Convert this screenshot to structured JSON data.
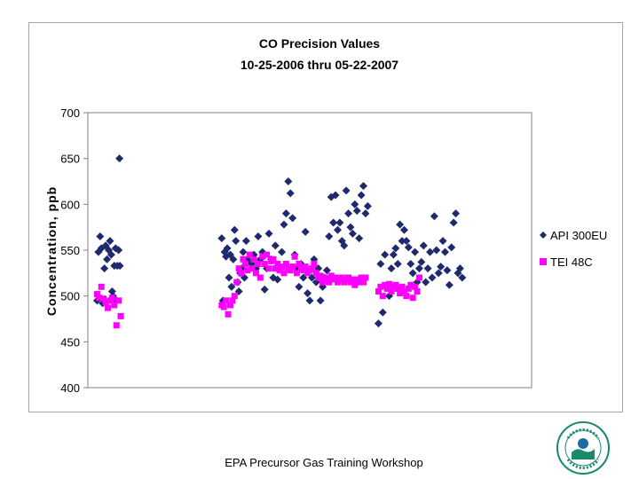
{
  "footer": {
    "text": "EPA Precursor Gas Training Workshop"
  },
  "logo": {
    "icon": "epa-seal-icon",
    "ring_text": "UNITED STATES · ENVIRONMENTAL PROTECTION AGENCY"
  },
  "colors": {
    "api": "#1f2a6e",
    "tei": "#ff00ff",
    "plot_border": "#808080",
    "frame_border": "#a6a6a6"
  },
  "chart_data": {
    "type": "scatter",
    "title": "CO Precision Values",
    "subtitle": "10-25-2006 thru 05-22-2007",
    "xlabel": "",
    "ylabel": "Concentration, ppb",
    "ylim": [
      400,
      700
    ],
    "yticks": [
      "700",
      "650",
      "600",
      "550",
      "500",
      "450",
      "400"
    ],
    "grid": false,
    "legend_position": "right",
    "x_axis_note": "sequential measurement index (no x tick labels shown)",
    "xlim": [
      0,
      100
    ],
    "series": [
      {
        "name": "API 300EU",
        "marker": "diamond",
        "color": "#1f2a6e",
        "points": [
          [
            0.5,
            495
          ],
          [
            0.8,
            548
          ],
          [
            1.2,
            565
          ],
          [
            1.5,
            552
          ],
          [
            1.8,
            492
          ],
          [
            2.2,
            530
          ],
          [
            2.5,
            555
          ],
          [
            2.8,
            540
          ],
          [
            3.2,
            550
          ],
          [
            3.5,
            560
          ],
          [
            3.8,
            545
          ],
          [
            4.0,
            505
          ],
          [
            4.2,
            500
          ],
          [
            4.5,
            533
          ],
          [
            4.8,
            552
          ],
          [
            5.0,
            495
          ],
          [
            5.2,
            533
          ],
          [
            5.5,
            550
          ],
          [
            5.7,
            650
          ],
          [
            5.8,
            533
          ],
          [
            29.5,
            563
          ],
          [
            29.8,
            495
          ],
          [
            30.2,
            548
          ],
          [
            30.5,
            543
          ],
          [
            30.8,
            552
          ],
          [
            31.2,
            520
          ],
          [
            31.5,
            545
          ],
          [
            31.8,
            510
          ],
          [
            32.2,
            540
          ],
          [
            32.5,
            572
          ],
          [
            32.8,
            560
          ],
          [
            33.2,
            515
          ],
          [
            33.5,
            505
          ],
          [
            33.8,
            525
          ],
          [
            34.2,
            530
          ],
          [
            34.5,
            548
          ],
          [
            34.8,
            520
          ],
          [
            35.2,
            560
          ],
          [
            35.5,
            540
          ],
          [
            35.8,
            538
          ],
          [
            36.5,
            535
          ],
          [
            37.0,
            545
          ],
          [
            37.5,
            530
          ],
          [
            38.0,
            565
          ],
          [
            38.5,
            540
          ],
          [
            39.0,
            548
          ],
          [
            39.5,
            507
          ],
          [
            40.0,
            530
          ],
          [
            40.5,
            568
          ],
          [
            41.0,
            540
          ],
          [
            41.5,
            520
          ],
          [
            42.0,
            555
          ],
          [
            42.5,
            518
          ],
          [
            43.0,
            530
          ],
          [
            43.5,
            548
          ],
          [
            44.0,
            578
          ],
          [
            44.5,
            590
          ],
          [
            45.0,
            625
          ],
          [
            45.5,
            612
          ],
          [
            46.0,
            585
          ],
          [
            46.5,
            545
          ],
          [
            47.0,
            530
          ],
          [
            47.5,
            510
          ],
          [
            48.0,
            535
          ],
          [
            48.5,
            520
          ],
          [
            49.0,
            570
          ],
          [
            49.5,
            503
          ],
          [
            50.0,
            495
          ],
          [
            50.5,
            520
          ],
          [
            51.0,
            540
          ],
          [
            51.5,
            515
          ],
          [
            52.0,
            530
          ],
          [
            52.5,
            495
          ],
          [
            53.0,
            510
          ],
          [
            53.5,
            520
          ],
          [
            54.0,
            528
          ],
          [
            54.5,
            565
          ],
          [
            55.0,
            608
          ],
          [
            55.5,
            580
          ],
          [
            56.0,
            610
          ],
          [
            56.5,
            572
          ],
          [
            57.0,
            580
          ],
          [
            57.5,
            560
          ],
          [
            58.0,
            555
          ],
          [
            58.5,
            615
          ],
          [
            59.0,
            590
          ],
          [
            59.5,
            575
          ],
          [
            60.0,
            568
          ],
          [
            60.5,
            600
          ],
          [
            61.0,
            593
          ],
          [
            61.5,
            563
          ],
          [
            62.0,
            610
          ],
          [
            62.5,
            620
          ],
          [
            63.0,
            590
          ],
          [
            63.5,
            598
          ],
          [
            66.0,
            470
          ],
          [
            66.5,
            535
          ],
          [
            67.0,
            482
          ],
          [
            67.5,
            545
          ],
          [
            68.0,
            510
          ],
          [
            68.5,
            500
          ],
          [
            69.0,
            530
          ],
          [
            69.5,
            545
          ],
          [
            70.0,
            552
          ],
          [
            70.5,
            535
          ],
          [
            71.0,
            578
          ],
          [
            71.5,
            560
          ],
          [
            72.0,
            572
          ],
          [
            72.5,
            560
          ],
          [
            73.0,
            553
          ],
          [
            73.5,
            535
          ],
          [
            74.0,
            525
          ],
          [
            74.5,
            548
          ],
          [
            75.0,
            515
          ],
          [
            75.5,
            530
          ],
          [
            76.0,
            537
          ],
          [
            76.5,
            555
          ],
          [
            77.0,
            515
          ],
          [
            77.5,
            530
          ],
          [
            78.0,
            548
          ],
          [
            78.5,
            520
          ],
          [
            79.0,
            587
          ],
          [
            79.5,
            550
          ],
          [
            80.0,
            525
          ],
          [
            80.5,
            532
          ],
          [
            81.0,
            560
          ],
          [
            81.5,
            548
          ],
          [
            82.0,
            528
          ],
          [
            82.5,
            512
          ],
          [
            83.0,
            553
          ],
          [
            83.5,
            580
          ],
          [
            84.0,
            590
          ],
          [
            84.5,
            525
          ],
          [
            85.0,
            530
          ],
          [
            85.5,
            520
          ]
        ]
      },
      {
        "name": "TEI 48C",
        "marker": "square",
        "color": "#ff00ff",
        "points": [
          [
            0.5,
            502
          ],
          [
            1.0,
            498
          ],
          [
            1.5,
            510
          ],
          [
            2.0,
            497
          ],
          [
            2.5,
            493
          ],
          [
            3.0,
            487
          ],
          [
            3.5,
            495
          ],
          [
            4.0,
            498
          ],
          [
            4.5,
            490
          ],
          [
            5.0,
            468
          ],
          [
            5.5,
            495
          ],
          [
            6.0,
            478
          ],
          [
            29.5,
            490
          ],
          [
            30.0,
            488
          ],
          [
            30.5,
            495
          ],
          [
            31.0,
            480
          ],
          [
            31.5,
            490
          ],
          [
            32.0,
            495
          ],
          [
            32.5,
            500
          ],
          [
            33.0,
            515
          ],
          [
            33.5,
            530
          ],
          [
            34.0,
            525
          ],
          [
            34.5,
            540
          ],
          [
            35.0,
            535
          ],
          [
            35.5,
            528
          ],
          [
            36.0,
            545
          ],
          [
            36.5,
            530
          ],
          [
            37.0,
            540
          ],
          [
            37.5,
            525
          ],
          [
            38.0,
            535
          ],
          [
            38.5,
            520
          ],
          [
            39.0,
            543
          ],
          [
            39.5,
            535
          ],
          [
            40.0,
            545
          ],
          [
            40.5,
            530
          ],
          [
            41.0,
            538
          ],
          [
            41.5,
            540
          ],
          [
            42.0,
            530
          ],
          [
            42.5,
            535
          ],
          [
            43.0,
            528
          ],
          [
            43.5,
            532
          ],
          [
            44.0,
            525
          ],
          [
            44.5,
            535
          ],
          [
            45.0,
            530
          ],
          [
            45.5,
            528
          ],
          [
            46.0,
            532
          ],
          [
            46.5,
            543
          ],
          [
            47.0,
            525
          ],
          [
            47.5,
            535
          ],
          [
            48.0,
            530
          ],
          [
            48.5,
            528
          ],
          [
            49.0,
            532
          ],
          [
            49.5,
            525
          ],
          [
            50.0,
            528
          ],
          [
            50.5,
            530
          ],
          [
            51.0,
            535
          ],
          [
            51.5,
            525
          ],
          [
            52.0,
            520
          ],
          [
            52.5,
            522
          ],
          [
            53.0,
            515
          ],
          [
            53.5,
            520
          ],
          [
            54.0,
            518
          ],
          [
            54.5,
            515
          ],
          [
            55.0,
            522
          ],
          [
            55.5,
            518
          ],
          [
            56.0,
            520
          ],
          [
            56.5,
            515
          ],
          [
            57.0,
            518
          ],
          [
            57.5,
            520
          ],
          [
            58.0,
            515
          ],
          [
            58.5,
            518
          ],
          [
            59.0,
            520
          ],
          [
            59.5,
            515
          ],
          [
            60.0,
            518
          ],
          [
            60.5,
            512
          ],
          [
            61.0,
            518
          ],
          [
            61.5,
            515
          ],
          [
            62.0,
            520
          ],
          [
            62.5,
            515
          ],
          [
            63.0,
            520
          ],
          [
            66.0,
            505
          ],
          [
            66.5,
            510
          ],
          [
            67.0,
            500
          ],
          [
            67.5,
            512
          ],
          [
            68.0,
            508
          ],
          [
            68.5,
            513
          ],
          [
            69.0,
            505
          ],
          [
            69.5,
            510
          ],
          [
            70.0,
            512
          ],
          [
            70.5,
            508
          ],
          [
            71.0,
            503
          ],
          [
            71.5,
            510
          ],
          [
            72.0,
            505
          ],
          [
            72.5,
            500
          ],
          [
            73.0,
            508
          ],
          [
            73.5,
            512
          ],
          [
            74.0,
            498
          ],
          [
            74.5,
            510
          ],
          [
            75.0,
            505
          ],
          [
            75.5,
            520
          ]
        ]
      }
    ]
  }
}
